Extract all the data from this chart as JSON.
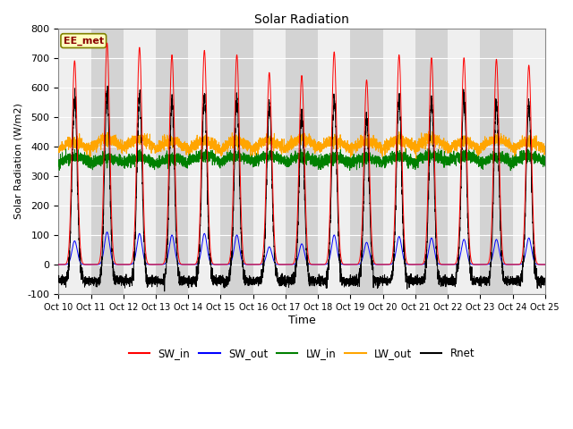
{
  "title": "Solar Radiation",
  "xlabel": "Time",
  "ylabel": "Solar Radiation (W/m2)",
  "ylim": [
    -100,
    800
  ],
  "yticks": [
    -100,
    0,
    100,
    200,
    300,
    400,
    500,
    600,
    700,
    800
  ],
  "legend_labels": [
    "SW_in",
    "SW_out",
    "LW_in",
    "LW_out",
    "Rnet"
  ],
  "legend_colors": [
    "red",
    "blue",
    "green",
    "orange",
    "black"
  ],
  "station_label": "EE_met",
  "plot_bg_color": "#e0e0e0",
  "fig_bg_color": "#ffffff",
  "n_days": 15,
  "start_day": 10,
  "xtick_labels": [
    "Oct 10",
    "Oct 11",
    "Oct 12",
    "Oct 13",
    "Oct 14",
    "Oct 15",
    "Oct 16",
    "Oct 17",
    "Oct 18",
    "Oct 19",
    "Oct 20",
    "Oct 21",
    "Oct 22",
    "Oct 23",
    "Oct 24",
    "Oct 25"
  ],
  "points_per_day": 288,
  "sw_peaks": [
    690,
    750,
    735,
    710,
    725,
    710,
    650,
    640,
    720,
    625,
    710,
    700,
    700,
    695,
    675
  ],
  "sw_out_peaks": [
    80,
    110,
    105,
    100,
    105,
    100,
    60,
    70,
    100,
    75,
    95,
    90,
    85,
    85,
    90
  ],
  "LW_in_base": 345,
  "LW_out_base": 390,
  "Rnet_night": -55
}
